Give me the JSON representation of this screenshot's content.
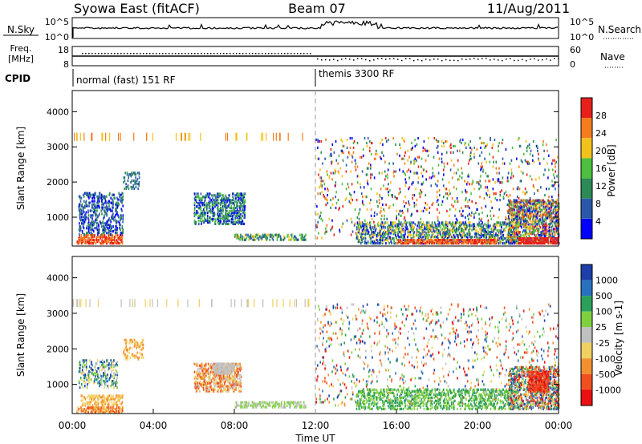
{
  "header": {
    "station": "Syowa East (fitACF)",
    "beam": "Beam 07",
    "date": "11/Aug/2011"
  },
  "top_panels": {
    "nsky": {
      "label": "N.Sky",
      "tick_top": "10^5",
      "tick_bottom": "10^0"
    },
    "nsearch": {
      "label": "N.Search",
      "tick_top": "10^5",
      "tick_bottom": "10^0"
    },
    "freq": {
      "label_line1": "Freq.",
      "label_line2": "[MHz]",
      "tick_top": "18",
      "tick_bottom": "8"
    },
    "nave": {
      "label": "Nave",
      "tick_top": "60",
      "tick_bottom": "0"
    },
    "cpid": {
      "label": "CPID",
      "modes": [
        {
          "label": "normal (fast) 151 RF",
          "start_hour": 0
        },
        {
          "label": "themis 3300 RF",
          "start_hour": 12
        }
      ]
    }
  },
  "chart_data": [
    {
      "type": "heatmap",
      "quantity": "power",
      "ylabel": "Slant Range [km]",
      "xlabel": "",
      "xlim_hours": [
        0,
        24
      ],
      "ylim_km": [
        180,
        4600
      ],
      "yticks": [
        1000,
        2000,
        3000,
        4000
      ],
      "colorbar": {
        "label": "Power [dB]",
        "tick_labels": [
          "4",
          "8",
          "12",
          "16",
          "20",
          "24",
          "28"
        ],
        "colors": [
          "#0000ff",
          "#2a58a8",
          "#2b8a55",
          "#4cbf3f",
          "#f2c21c",
          "#f47c1c",
          "#e8201c"
        ]
      }
    },
    {
      "type": "heatmap",
      "quantity": "velocity",
      "ylabel": "Slant Range [km]",
      "xlabel": "Time UT",
      "xlim_hours": [
        0,
        24
      ],
      "ylim_km": [
        180,
        4600
      ],
      "yticks": [
        1000,
        2000,
        3000,
        4000
      ],
      "xtick_labels": [
        "00:00",
        "04:00",
        "08:00",
        "12:00",
        "16:00",
        "20:00",
        "00:00"
      ],
      "colorbar": {
        "label": "Velocity [m s-1]",
        "tick_labels": [
          "1000",
          "500",
          "100",
          "25",
          "-25",
          "-100",
          "-500",
          "-1000"
        ],
        "colors": [
          "#1c3fa8",
          "#2a70c0",
          "#2aa05a",
          "#7fd03f",
          "#c0c0c0",
          "#f0d060",
          "#f29030",
          "#f05020",
          "#e81010"
        ]
      }
    }
  ]
}
